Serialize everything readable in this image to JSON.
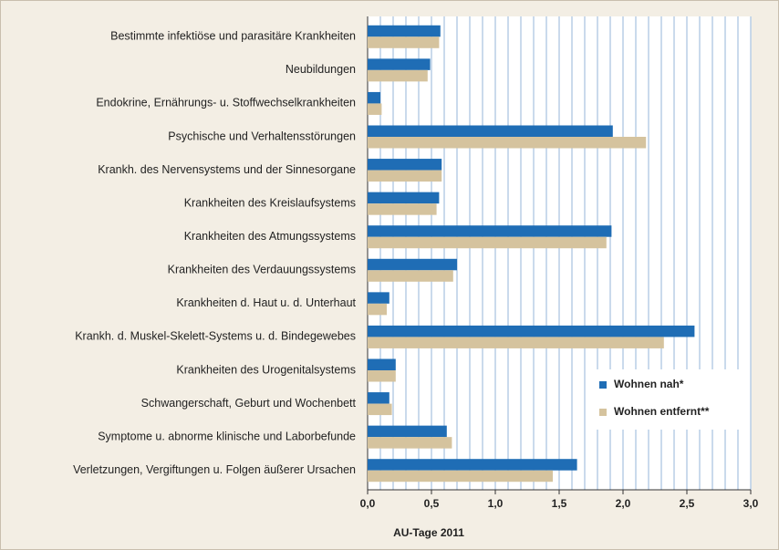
{
  "chart_data": {
    "type": "hbar",
    "categories": [
      "Bestimmte infektiöse und parasitäre Krankheiten",
      "Neubildungen",
      "Endokrine, Ernährungs- u. Stoffwechselkrankheiten",
      "Psychische und Verhaltensstörungen",
      "Krankh. des Nervensystems und der Sinnesorgane",
      "Krankheiten des Kreislaufsystems",
      "Krankheiten des Atmungssystems",
      "Krankheiten des Verdauungssystems",
      "Krankheiten d. Haut u. d. Unterhaut",
      "Krankh. d. Muskel-Skelett-Systems u. d. Bindegewebes",
      "Krankheiten des Urogenitalsystems",
      "Schwangerschaft, Geburt und Wochenbett",
      "Symptome u. abnorme klinische und Laborbefunde",
      "Verletzungen, Vergiftungen u. Folgen äußerer Ursachen"
    ],
    "series": [
      {
        "name": "Wohnen nah*",
        "color": "#1f6db5",
        "values": [
          0.57,
          0.49,
          0.1,
          1.92,
          0.58,
          0.56,
          1.91,
          0.7,
          0.17,
          2.56,
          0.22,
          0.17,
          0.62,
          1.64
        ]
      },
      {
        "name": "Wohnen entfernt**",
        "color": "#d5c39e",
        "values": [
          0.56,
          0.47,
          0.11,
          2.18,
          0.58,
          0.54,
          1.87,
          0.67,
          0.15,
          2.32,
          0.22,
          0.19,
          0.66,
          1.45
        ]
      }
    ],
    "xlabel": "AU-Tage 2011",
    "xlim": [
      0,
      3
    ],
    "xticks": [
      {
        "value": 0,
        "label": "0,0"
      },
      {
        "value": 0.5,
        "label": "0,5"
      },
      {
        "value": 1,
        "label": "1,0"
      },
      {
        "value": 1.5,
        "label": "1,5"
      },
      {
        "value": 2,
        "label": "2,0"
      },
      {
        "value": 2.5,
        "label": "2,5"
      },
      {
        "value": 3,
        "label": "3,0"
      }
    ],
    "minor_xticks": [
      0.1,
      0.2,
      0.3,
      0.4,
      0.6,
      0.7,
      0.8,
      0.9,
      1.1,
      1.2,
      1.3,
      1.4,
      1.6,
      1.7,
      1.8,
      1.9,
      2.1,
      2.2,
      2.3,
      2.4,
      2.6,
      2.7,
      2.8,
      2.9
    ],
    "grid": true,
    "legend": "lower right"
  }
}
